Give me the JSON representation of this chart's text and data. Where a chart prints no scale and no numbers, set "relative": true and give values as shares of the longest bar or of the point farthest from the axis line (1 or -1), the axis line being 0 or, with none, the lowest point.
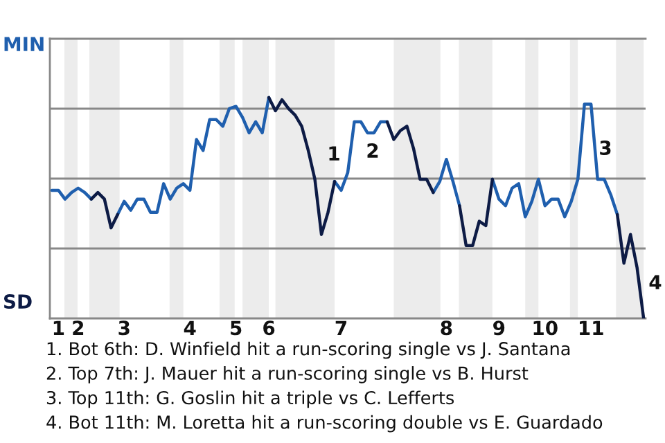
{
  "chart_data": {
    "type": "line",
    "relative": true,
    "categories": [
      null,
      "1",
      null,
      null,
      "2",
      null,
      null,
      null,
      null,
      null,
      null,
      "3",
      null,
      null,
      null,
      null,
      null,
      null,
      null,
      null,
      null,
      "4",
      null,
      null,
      null,
      null,
      null,
      null,
      "5",
      null,
      null,
      null,
      null,
      "6",
      null,
      null,
      null,
      null,
      null,
      null,
      null,
      null,
      null,
      null,
      "7",
      null,
      null,
      null,
      null,
      null,
      null,
      null,
      null,
      null,
      null,
      null,
      null,
      null,
      null,
      null,
      "8",
      null,
      null,
      null,
      null,
      null,
      null,
      null,
      "9",
      null,
      null,
      null,
      null,
      null,
      null,
      "10",
      null,
      null,
      null,
      null,
      null,
      null,
      "11",
      null,
      null,
      null,
      null,
      null,
      null,
      null,
      null
    ],
    "series": [
      {
        "color": "#1f5fae",
        "values": [
          0.58,
          0.58,
          0.54,
          0.57,
          0.59,
          0.57,
          0.54,
          null,
          null,
          null,
          0.47,
          0.53,
          0.49,
          0.54,
          0.54,
          0.48,
          0.48,
          0.61,
          0.54,
          0.59,
          0.61,
          0.58,
          0.81,
          0.76,
          0.9,
          0.9,
          0.87,
          0.95,
          0.96,
          0.91,
          0.84,
          0.89,
          0.84,
          1,
          null,
          null,
          null,
          null,
          null,
          null,
          null,
          null,
          null,
          0.62,
          0.58,
          0.66,
          0.89,
          0.89,
          0.84,
          0.84,
          0.89,
          0.89,
          null,
          null,
          null,
          null,
          null,
          null,
          0.57,
          0.62,
          0.72,
          0.62,
          0.51,
          null,
          null,
          null,
          null,
          0.63,
          0.54,
          0.51,
          0.59,
          0.61,
          0.46,
          0.53,
          0.63,
          0.51,
          0.54,
          0.54,
          0.46,
          0.53,
          0.63,
          0.97,
          0.97,
          0.63,
          0.63,
          0.56,
          0.47,
          null,
          null,
          null,
          null
        ]
      },
      {
        "color": "#0d1b45",
        "values": [
          null,
          null,
          null,
          null,
          null,
          null,
          0.54,
          0.57,
          0.54,
          0.41,
          0.47,
          null,
          null,
          null,
          null,
          null,
          null,
          null,
          null,
          null,
          null,
          null,
          null,
          null,
          null,
          null,
          null,
          null,
          null,
          null,
          null,
          null,
          null,
          1,
          0.94,
          0.99,
          0.95,
          0.92,
          0.87,
          0.76,
          0.63,
          0.38,
          0.48,
          0.62,
          null,
          null,
          null,
          null,
          null,
          null,
          null,
          0.89,
          0.81,
          0.85,
          0.87,
          0.77,
          0.63,
          0.63,
          0.57,
          null,
          null,
          null,
          0.51,
          0.33,
          0.33,
          0.44,
          0.42,
          0.63,
          null,
          null,
          null,
          null,
          null,
          null,
          null,
          null,
          null,
          null,
          null,
          null,
          null,
          null,
          null,
          null,
          null,
          null,
          0.47,
          0.25,
          0.38,
          0.23,
          0
        ]
      }
    ],
    "grid": "y",
    "annotations": [
      "MIN",
      "SD",
      "1",
      "2",
      "3",
      "4",
      "1. Bot 6th: D. Winfield hit a run-scoring single vs J. Santana",
      "2. Top 7th: J. Mauer hit a run-scoring single vs B. Hurst",
      "3. Top 11th: G. Goslin hit a triple vs C. Lefferts",
      "4. Bot 11th: M. Loretta hit a run-scoring double vs E. Guardado"
    ]
  }
}
